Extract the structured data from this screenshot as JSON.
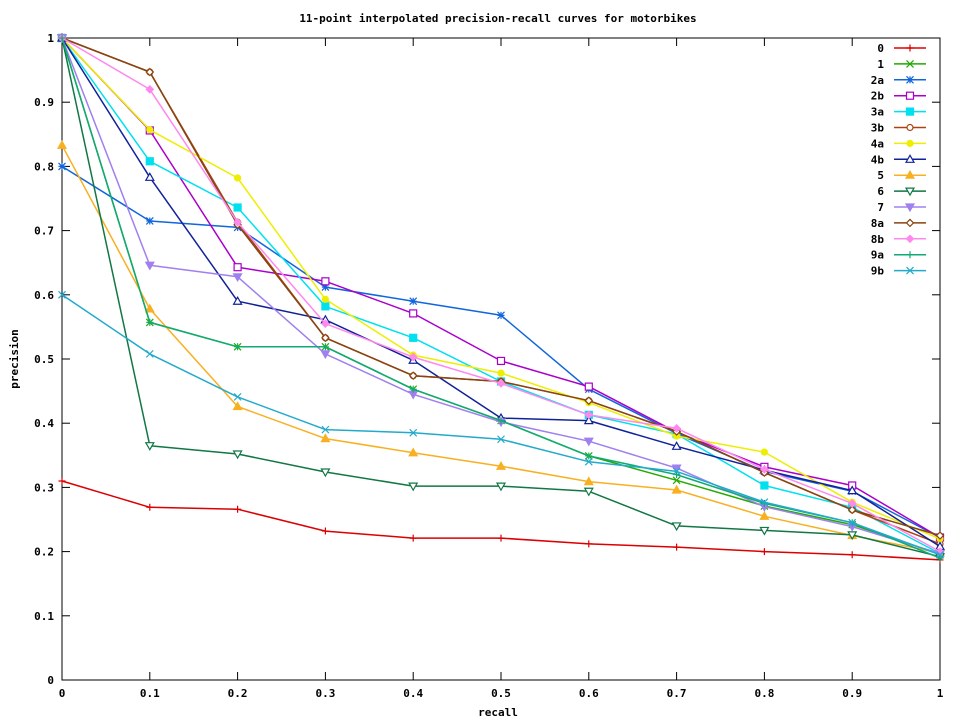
{
  "chart_data": {
    "type": "line",
    "title": "11-point interpolated precision-recall curves for motorbikes",
    "xlabel": "recall",
    "ylabel": "precision",
    "xlim": [
      0,
      1
    ],
    "ylim": [
      0,
      1
    ],
    "x_ticks": [
      "0",
      "0.1",
      "0.2",
      "0.3",
      "0.4",
      "0.5",
      "0.6",
      "0.7",
      "0.8",
      "0.9",
      "1"
    ],
    "y_ticks": [
      "0",
      "0.1",
      "0.2",
      "0.3",
      "0.4",
      "0.5",
      "0.6",
      "0.7",
      "0.8",
      "0.9",
      "1"
    ],
    "grid": false,
    "legend_position": "top-right",
    "x": [
      0,
      0.1,
      0.2,
      0.3,
      0.4,
      0.5,
      0.6,
      0.7,
      0.8,
      0.9,
      1.0
    ],
    "series": [
      {
        "name": "0",
        "color": "#dd0000",
        "marker": "plus",
        "values": [
          0.31,
          0.269,
          0.266,
          0.232,
          0.221,
          0.221,
          0.212,
          0.207,
          0.2,
          0.195,
          0.187
        ]
      },
      {
        "name": "1",
        "color": "#22aa00",
        "marker": "cross",
        "values": [
          1.0,
          0.557,
          0.519,
          0.519,
          0.453,
          0.404,
          0.349,
          0.311,
          0.271,
          0.242,
          0.196
        ]
      },
      {
        "name": "2a",
        "color": "#1166dd",
        "marker": "star",
        "values": [
          0.8,
          0.715,
          0.705,
          0.612,
          0.59,
          0.568,
          0.453,
          0.384,
          0.325,
          0.294,
          0.222
        ]
      },
      {
        "name": "2b",
        "color": "#aa00cc",
        "marker": "square-open",
        "values": [
          1.0,
          0.856,
          0.643,
          0.621,
          0.571,
          0.497,
          0.457,
          0.386,
          0.332,
          0.303,
          0.222
        ]
      },
      {
        "name": "3a",
        "color": "#00e0ee",
        "marker": "square-filled",
        "values": [
          1.0,
          0.808,
          0.736,
          0.582,
          0.533,
          0.465,
          0.413,
          0.383,
          0.303,
          0.269,
          0.197
        ]
      },
      {
        "name": "3b",
        "color": "#aa4411",
        "marker": "circle-open",
        "values": [
          1.0,
          0.947,
          0.713,
          0.533,
          0.474,
          0.465,
          0.435,
          0.387,
          0.323,
          0.265,
          0.212
        ]
      },
      {
        "name": "4a",
        "color": "#eeee00",
        "marker": "circle-filled",
        "values": [
          1.0,
          0.857,
          0.782,
          0.593,
          0.506,
          0.478,
          0.432,
          0.38,
          0.355,
          0.277,
          0.22
        ]
      },
      {
        "name": "4b",
        "color": "#112299",
        "marker": "triangle-open",
        "values": [
          1.0,
          0.783,
          0.59,
          0.561,
          0.498,
          0.408,
          0.404,
          0.364,
          0.327,
          0.295,
          0.208
        ]
      },
      {
        "name": "5",
        "color": "#f8b020",
        "marker": "triangle-filled",
        "values": [
          0.833,
          0.578,
          0.426,
          0.376,
          0.354,
          0.333,
          0.309,
          0.296,
          0.255,
          0.225,
          0.198
        ]
      },
      {
        "name": "6",
        "color": "#117744",
        "marker": "invtri-open",
        "values": [
          1.0,
          0.365,
          0.352,
          0.324,
          0.302,
          0.302,
          0.294,
          0.24,
          0.233,
          0.226,
          0.192
        ]
      },
      {
        "name": "7",
        "color": "#a080ee",
        "marker": "invtri-filled",
        "values": [
          1.0,
          0.646,
          0.628,
          0.508,
          0.445,
          0.402,
          0.372,
          0.33,
          0.27,
          0.239,
          0.197
        ]
      },
      {
        "name": "8a",
        "color": "#884411",
        "marker": "diamond-open",
        "values": [
          1.0,
          0.947,
          0.709,
          0.533,
          0.474,
          0.465,
          0.435,
          0.387,
          0.323,
          0.265,
          0.225
        ]
      },
      {
        "name": "8b",
        "color": "#ff88ee",
        "marker": "diamond-filled",
        "values": [
          1.0,
          0.92,
          0.713,
          0.555,
          0.503,
          0.462,
          0.413,
          0.392,
          0.328,
          0.275,
          0.2
        ]
      },
      {
        "name": "9a",
        "color": "#11aa77",
        "marker": "plus",
        "values": [
          1.0,
          0.557,
          0.519,
          0.519,
          0.453,
          0.404,
          0.349,
          0.32,
          0.275,
          0.245,
          0.19
        ]
      },
      {
        "name": "9b",
        "color": "#22aacc",
        "marker": "cross",
        "values": [
          0.6,
          0.508,
          0.441,
          0.39,
          0.385,
          0.375,
          0.34,
          0.325,
          0.277,
          0.245,
          0.195
        ]
      }
    ]
  }
}
